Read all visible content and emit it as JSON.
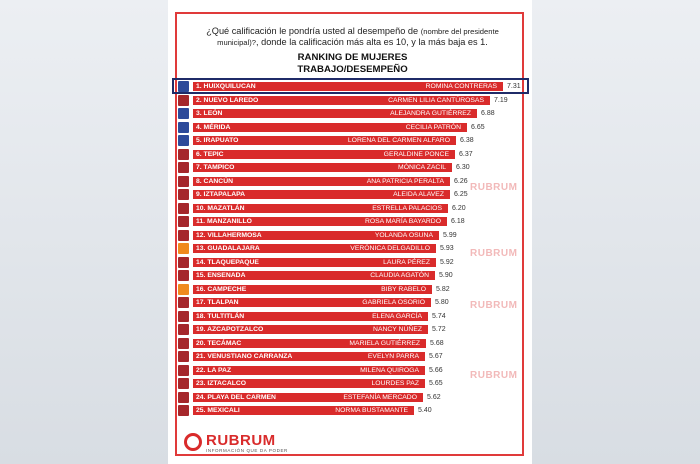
{
  "header": {
    "question_part1": "¿Qué calificación le pondría usted al desempeño de",
    "question_small": "(nombre del presidente municipal)?",
    "question_part2": ", donde la calificación más alta es 10, y la más baja es 1.",
    "title_line1": "RANKING DE MUJERES",
    "title_line2": "TRABAJO/DESEMPEÑO"
  },
  "brand": {
    "name": "RUBRUM",
    "tagline": "INFORMACIÓN QUE DA PODER",
    "watermark": "RUBRUM"
  },
  "colors": {
    "bar": "#d92b2b",
    "frame": "#e03a3a",
    "highlight_border": "#1f2b68",
    "pan_icon": "#2d4a9a",
    "mc_icon": "#f08a1e",
    "morena_icon": "#a5272b"
  },
  "chart_data": {
    "type": "bar",
    "title": "RANKING DE MUJERES TRABAJO/DESEMPEÑO",
    "orientation": "horizontal",
    "categories": [
      "1. HUIXQUILUCAN",
      "2. NUEVO LAREDO",
      "3. LEÓN",
      "4. MÉRIDA",
      "5. IRAPUATO",
      "6. TEPIC",
      "7. TAMPICO",
      "8. CANCÚN",
      "9. IZTAPALAPA",
      "10. MAZATLÁN",
      "11. MANZANILLO",
      "12. VILLAHERMOSA",
      "13. GUADALAJARA",
      "14. TLAQUEPAQUE",
      "15. ENSENADA",
      "16. CAMPECHE",
      "17. TLALPAN",
      "18. TULTITLÁN",
      "19. AZCAPOTZALCO",
      "20. TECÁMAC",
      "21. VENUSTIANO CARRANZA",
      "22. LA PAZ",
      "23. IZTACALCO",
      "24. PLAYA DEL CARMEN",
      "25. MEXICALI"
    ],
    "names": [
      "ROMINA CONTRERAS",
      "CARMEN LILIA CANTÚROSAS",
      "ALEJANDRA GUTIÉRREZ",
      "CECILIA PATRÓN",
      "LORENA DEL CARMEN ALFARO",
      "GERALDINE PONCE",
      "MÓNICA ZACIL",
      "ANA PATRICIA PERALTA",
      "ALEIDA ALAVEZ",
      "ESTRELLA PALACIOS",
      "ROSA MARÍA BAYARDO",
      "YOLANDA OSUNA",
      "VERÓNICA DELGADILLO",
      "LAURA PÉREZ",
      "CLAUDIA AGATÓN",
      "BIBY RABELO",
      "GABRIELA OSORIO",
      "ELENA GARCÍA",
      "NANCY NÚÑEZ",
      "MARIELA GUTIÉRREZ",
      "EVELYN PARRA",
      "MILENA QUIROGA",
      "LOURDES PAZ",
      "ESTEFANÍA MERCADO",
      "NORMA BUSTAMANTE"
    ],
    "values": [
      7.31,
      7.19,
      6.88,
      6.65,
      6.38,
      6.37,
      6.3,
      6.26,
      6.25,
      6.2,
      6.18,
      5.99,
      5.93,
      5.92,
      5.9,
      5.82,
      5.8,
      5.74,
      5.72,
      5.68,
      5.67,
      5.66,
      5.65,
      5.62,
      5.4
    ],
    "party_icons": [
      "pan",
      "morena",
      "pan",
      "pan",
      "pan",
      "morena",
      "morena",
      "morena",
      "morena",
      "morena",
      "morena",
      "morena",
      "mc",
      "morena",
      "morena",
      "mc",
      "morena",
      "morena",
      "morena",
      "morena",
      "morena",
      "morena",
      "morena",
      "morena",
      "morena"
    ],
    "highlighted_rank": 1,
    "xlim": [
      0,
      7.31
    ]
  }
}
